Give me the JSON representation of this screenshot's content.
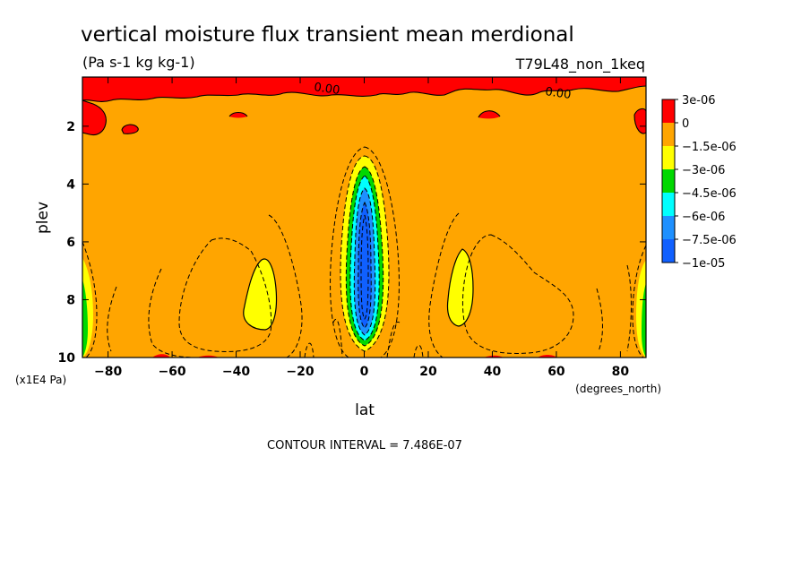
{
  "chart_data": {
    "type": "heatmap",
    "title": "vertical moisture flux transient mean merdional",
    "subtitle": "(Pa s-1 kg kg-1)",
    "run_label": "T79L48_non_1keq",
    "xlabel": "lat",
    "x_units": "(degrees_north)",
    "ylabel": "plev",
    "y_units": "(x1E4 Pa)",
    "xlim": [
      -88,
      88
    ],
    "ylim": [
      10,
      0.3
    ],
    "x_ticks": [
      -80,
      -60,
      -40,
      -20,
      0,
      20,
      40,
      60,
      80
    ],
    "y_ticks": [
      2,
      4,
      6,
      8,
      10
    ],
    "footer": "CONTOUR INTERVAL = 7.486E-07",
    "contour_labels": [
      "0.00",
      "0.00"
    ],
    "legend": {
      "labels": [
        "3e-06",
        "0",
        "−1.5e-06",
        "−3e-06",
        "−4.5e-06",
        "−6e-06",
        "−7.5e-06",
        "−1e-05"
      ],
      "colors": [
        "#ff0000",
        "#ffa500",
        "#ffff00",
        "#00d800",
        "#00ffff",
        "#1e90ff",
        "#1060ff"
      ]
    },
    "background_color": "#ffa500",
    "features": [
      {
        "kind": "positive",
        "color": "#ff0000",
        "lat_range": [
          -88,
          88
        ],
        "plev_range": [
          0.3,
          1.2
        ]
      },
      {
        "kind": "minimum",
        "color": "#1060ff",
        "center_lat": 0,
        "plev_range": [
          2.8,
          10
        ],
        "min_value": -1e-05
      },
      {
        "kind": "minimum",
        "color": "#ffff00",
        "center_lat": -33,
        "plev_range": [
          6.4,
          9.1
        ],
        "min_value": -3e-06
      },
      {
        "kind": "minimum",
        "color": "#ffff00",
        "center_lat": 33,
        "plev_range": [
          6.2,
          9.0
        ],
        "min_value": -3e-06
      },
      {
        "kind": "minimum",
        "color": "#00d800",
        "center_lat": -88,
        "plev_range": [
          6.5,
          10
        ],
        "min_value": -4.5e-06
      },
      {
        "kind": "minimum",
        "color": "#00d800",
        "center_lat": 88,
        "plev_range": [
          6.5,
          10
        ],
        "min_value": -4.5e-06
      }
    ]
  }
}
